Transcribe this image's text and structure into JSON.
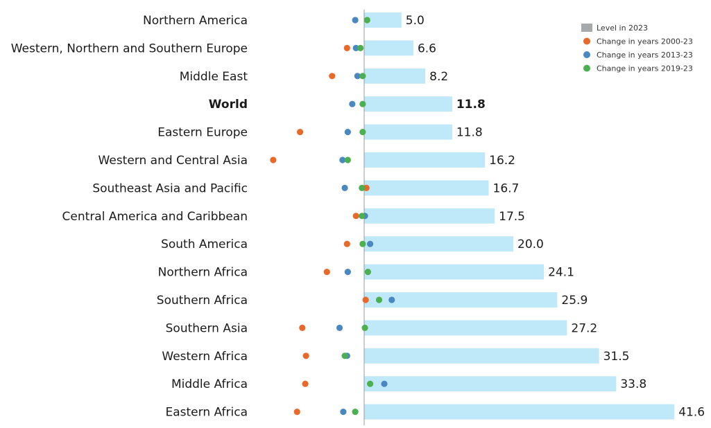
{
  "chart_data": {
    "type": "bar",
    "title": "",
    "xlabel": "",
    "ylabel": "",
    "categories": [
      "Northern America",
      "Western, Northern and Southern Europe",
      "Middle East",
      "World",
      "Eastern Europe",
      "Western and Central Asia",
      "Southeast Asia and Pacific",
      "Central America and Caribbean",
      "South America",
      "Northern Africa",
      "Southern Africa",
      "Southern Asia",
      "Western Africa",
      "Middle Africa",
      "Eastern Africa"
    ],
    "highlight_category": "World",
    "level_labels": [
      "5.0",
      "6.6",
      "8.2",
      "11.8",
      "11.8",
      "16.2",
      "16.7",
      "17.5",
      "20.0",
      "24.1",
      "25.9",
      "27.2",
      "31.5",
      "33.8",
      "41.6"
    ],
    "series": [
      {
        "name": "Level in 2023",
        "kind": "bar",
        "color": "#bfe8f8",
        "values": [
          5.0,
          6.6,
          8.2,
          11.8,
          11.8,
          16.2,
          16.7,
          17.5,
          20.0,
          24.1,
          25.9,
          27.2,
          31.5,
          33.8,
          41.6
        ]
      },
      {
        "name": "Change in years 2000-23",
        "kind": "dot",
        "color": "#e8692a",
        "values": [
          null,
          -2.3,
          -4.3,
          null,
          -8.6,
          -12.2,
          0.3,
          -1.1,
          -2.3,
          -5.0,
          0.2,
          -8.3,
          -7.8,
          -7.9,
          -9.0
        ]
      },
      {
        "name": "Change in years 2013-23",
        "kind": "dot",
        "color": "#4a88c2",
        "values": [
          -1.2,
          -1.1,
          -0.9,
          -1.6,
          -2.2,
          -2.9,
          -2.6,
          0.1,
          0.8,
          -2.2,
          3.7,
          -3.3,
          -2.3,
          2.7,
          -2.8
        ]
      },
      {
        "name": "Change in years 2019-23",
        "kind": "dot",
        "color": "#4cb050",
        "values": [
          0.4,
          -0.5,
          -0.2,
          -0.2,
          -0.2,
          -2.2,
          -0.3,
          -0.3,
          -0.2,
          0.5,
          2.0,
          0.1,
          -2.6,
          0.8,
          -1.2
        ]
      }
    ],
    "legend_position": "top-right",
    "grid": false,
    "zero_line": true,
    "colors": {
      "legend_level_swatch": "#a6a9ac",
      "zero_line": "#999999",
      "text": "#1a1a1a"
    }
  }
}
